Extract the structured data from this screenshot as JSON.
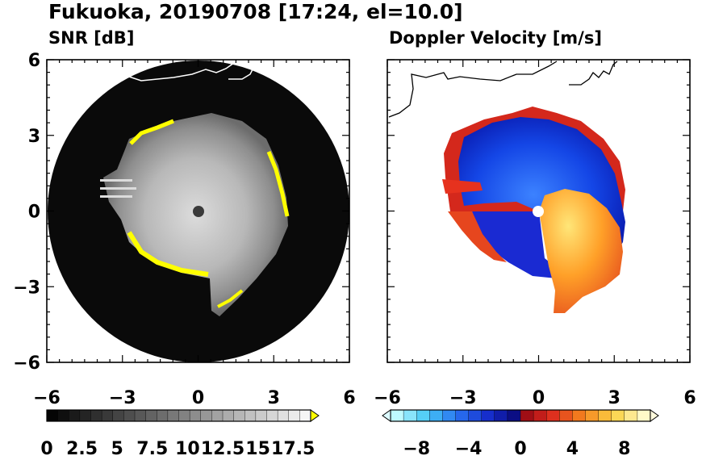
{
  "title": "Fukuoka, 20190708 [17:24, el=10.0]",
  "colors": {
    "echo_gray": "#b4b4b4",
    "edge_yellow": "#ffff00",
    "background_black": "#0a0a0a",
    "velocity_blue": "#1a37e6",
    "velocity_red": "#e6321e",
    "velocity_yellow": "#ffe650"
  },
  "chart_data": [
    {
      "type": "heatmap",
      "title": "SNR [dB]",
      "xlim": [
        -6,
        6
      ],
      "ylim": [
        -6,
        6
      ],
      "xticks": [
        "−6",
        "−3",
        "0",
        "3",
        "6"
      ],
      "yticks": [
        "6",
        "3",
        "0",
        "−3",
        "−6"
      ],
      "colorbar": {
        "min": 0,
        "max": 18.75,
        "levels": 24,
        "extend": "max",
        "tick_labels": [
          "0",
          "2.5",
          "5",
          "7.5",
          "10",
          "12.5",
          "15",
          "17.5"
        ]
      }
    },
    {
      "type": "heatmap",
      "title": "Doppler Velocity [m/s]",
      "xlim": [
        -6,
        6
      ],
      "ylim": [
        -6,
        6
      ],
      "xticks": [
        "−6",
        "−3",
        "0",
        "3",
        "6"
      ],
      "yticks": [],
      "colorbar": {
        "min": -10,
        "max": 10,
        "levels": 20,
        "extend": "both",
        "tick_labels": [
          "−8",
          "−4",
          "0",
          "4",
          "8"
        ]
      }
    }
  ]
}
